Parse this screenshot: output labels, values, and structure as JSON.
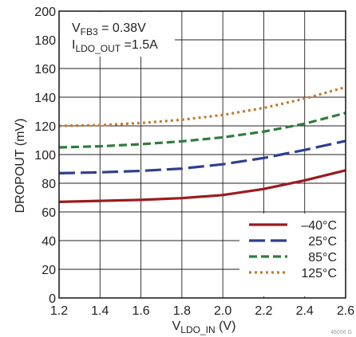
{
  "chart_data": {
    "type": "line",
    "title": "",
    "xlabel": {
      "main": "V",
      "sub": "LDO_IN",
      "unit": " (V)"
    },
    "ylabel": "DROPOUT (mV)",
    "xlim": [
      1.2,
      2.6
    ],
    "ylim": [
      0,
      200
    ],
    "x_ticks": [
      1.2,
      1.4,
      1.6,
      1.8,
      2.0,
      2.2,
      2.4,
      2.6
    ],
    "x_tick_labels": [
      "1.2",
      "1.4",
      "1.6",
      "1.8",
      "2.0",
      "2.2",
      "2.4",
      "2.6"
    ],
    "y_ticks": [
      0,
      20,
      40,
      60,
      80,
      100,
      120,
      140,
      160,
      180,
      200
    ],
    "y_tick_labels": [
      "0",
      "20",
      "40",
      "60",
      "80",
      "100",
      "120",
      "140",
      "160",
      "180",
      "200"
    ],
    "grid": true,
    "legend_position": "bottom-right",
    "annotations": [
      {
        "main": "V",
        "sub": "FB3",
        "rest": " = 0.38V"
      },
      {
        "main": "I",
        "sub": "LDO_OUT",
        "rest": " =1.5A"
      }
    ],
    "figure_id": "46056 G",
    "x": [
      1.2,
      1.4,
      1.6,
      1.8,
      2.0,
      2.2,
      2.4,
      2.6
    ],
    "series": [
      {
        "name": "–40°C",
        "color": "#9b1b1f",
        "style": "solid",
        "values": [
          67,
          67.7,
          68.4,
          69.6,
          71.8,
          76,
          82,
          89
        ]
      },
      {
        "name": "25°C",
        "color": "#2e3f8f",
        "style": "longdash",
        "values": [
          87,
          87.6,
          88.6,
          90.2,
          93.2,
          97.6,
          103.2,
          109.5
        ]
      },
      {
        "name": "85°C",
        "color": "#2e7d3c",
        "style": "dash",
        "values": [
          105,
          105.8,
          107.2,
          109.2,
          112,
          116,
          121.5,
          129
        ]
      },
      {
        "name": "125°C",
        "color": "#c27a35",
        "style": "dot",
        "values": [
          120,
          120.5,
          122,
          124.3,
          127.6,
          132.5,
          139,
          147
        ]
      }
    ]
  }
}
